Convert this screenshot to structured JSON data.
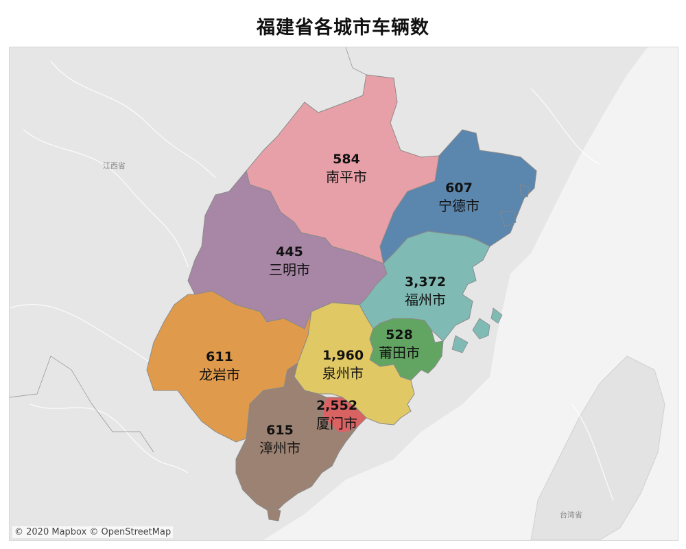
{
  "title": "福建省各城市车辆数",
  "attribution": "© 2020 Mapbox © OpenStreetMap",
  "province_labels": {
    "jiangxi": "江西省",
    "taiwan": "台湾省"
  },
  "legend_colors": {
    "nanping": "#e8a0a8",
    "ningde": "#5b86ad",
    "sanming": "#a886a5",
    "fuzhou": "#7fbbb4",
    "longyan": "#e09a4c",
    "quanzhou": "#e0c864",
    "putian": "#62a563",
    "xiamen": "#d96363",
    "zhangzhou": "#9c8272"
  },
  "cities": [
    {
      "key": "nanping",
      "name": "南平市",
      "value": "584"
    },
    {
      "key": "ningde",
      "name": "宁德市",
      "value": "607"
    },
    {
      "key": "sanming",
      "name": "三明市",
      "value": "445"
    },
    {
      "key": "fuzhou",
      "name": "福州市",
      "value": "3,372"
    },
    {
      "key": "putian",
      "name": "莆田市",
      "value": "528"
    },
    {
      "key": "longyan",
      "name": "龙岩市",
      "value": "611"
    },
    {
      "key": "quanzhou",
      "name": "泉州市",
      "value": "1,960"
    },
    {
      "key": "xiamen",
      "name": "厦门市",
      "value": "2,552"
    },
    {
      "key": "zhangzhou",
      "name": "漳州市",
      "value": "615"
    }
  ]
}
